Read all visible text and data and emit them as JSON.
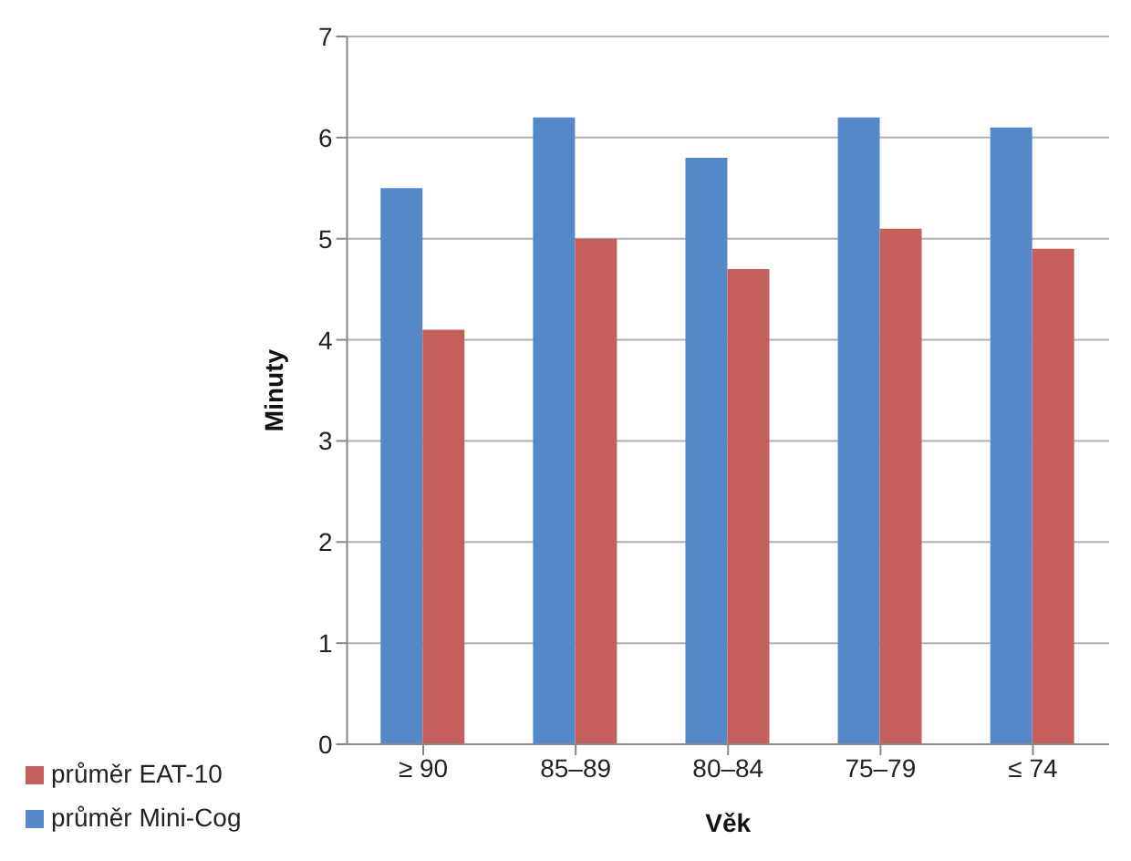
{
  "chart_data": {
    "type": "bar",
    "xlabel": "Věk",
    "ylabel": "Minuty",
    "categories": [
      "≥ 90",
      "85–89",
      "80–84",
      "75–79",
      "≤ 74"
    ],
    "series": [
      {
        "name": "průměr Mini-Cog",
        "color": "#5588c8",
        "values": [
          5.5,
          6.2,
          5.8,
          6.2,
          6.1
        ]
      },
      {
        "name": "průměr EAT-10",
        "color": "#c45f5c",
        "values": [
          4.1,
          5.0,
          4.7,
          5.1,
          4.9
        ]
      }
    ],
    "ylim": [
      0,
      7
    ],
    "yticks": [
      0,
      1,
      2,
      3,
      4,
      5,
      6,
      7
    ],
    "grid": "y",
    "legend": "bottom left"
  }
}
